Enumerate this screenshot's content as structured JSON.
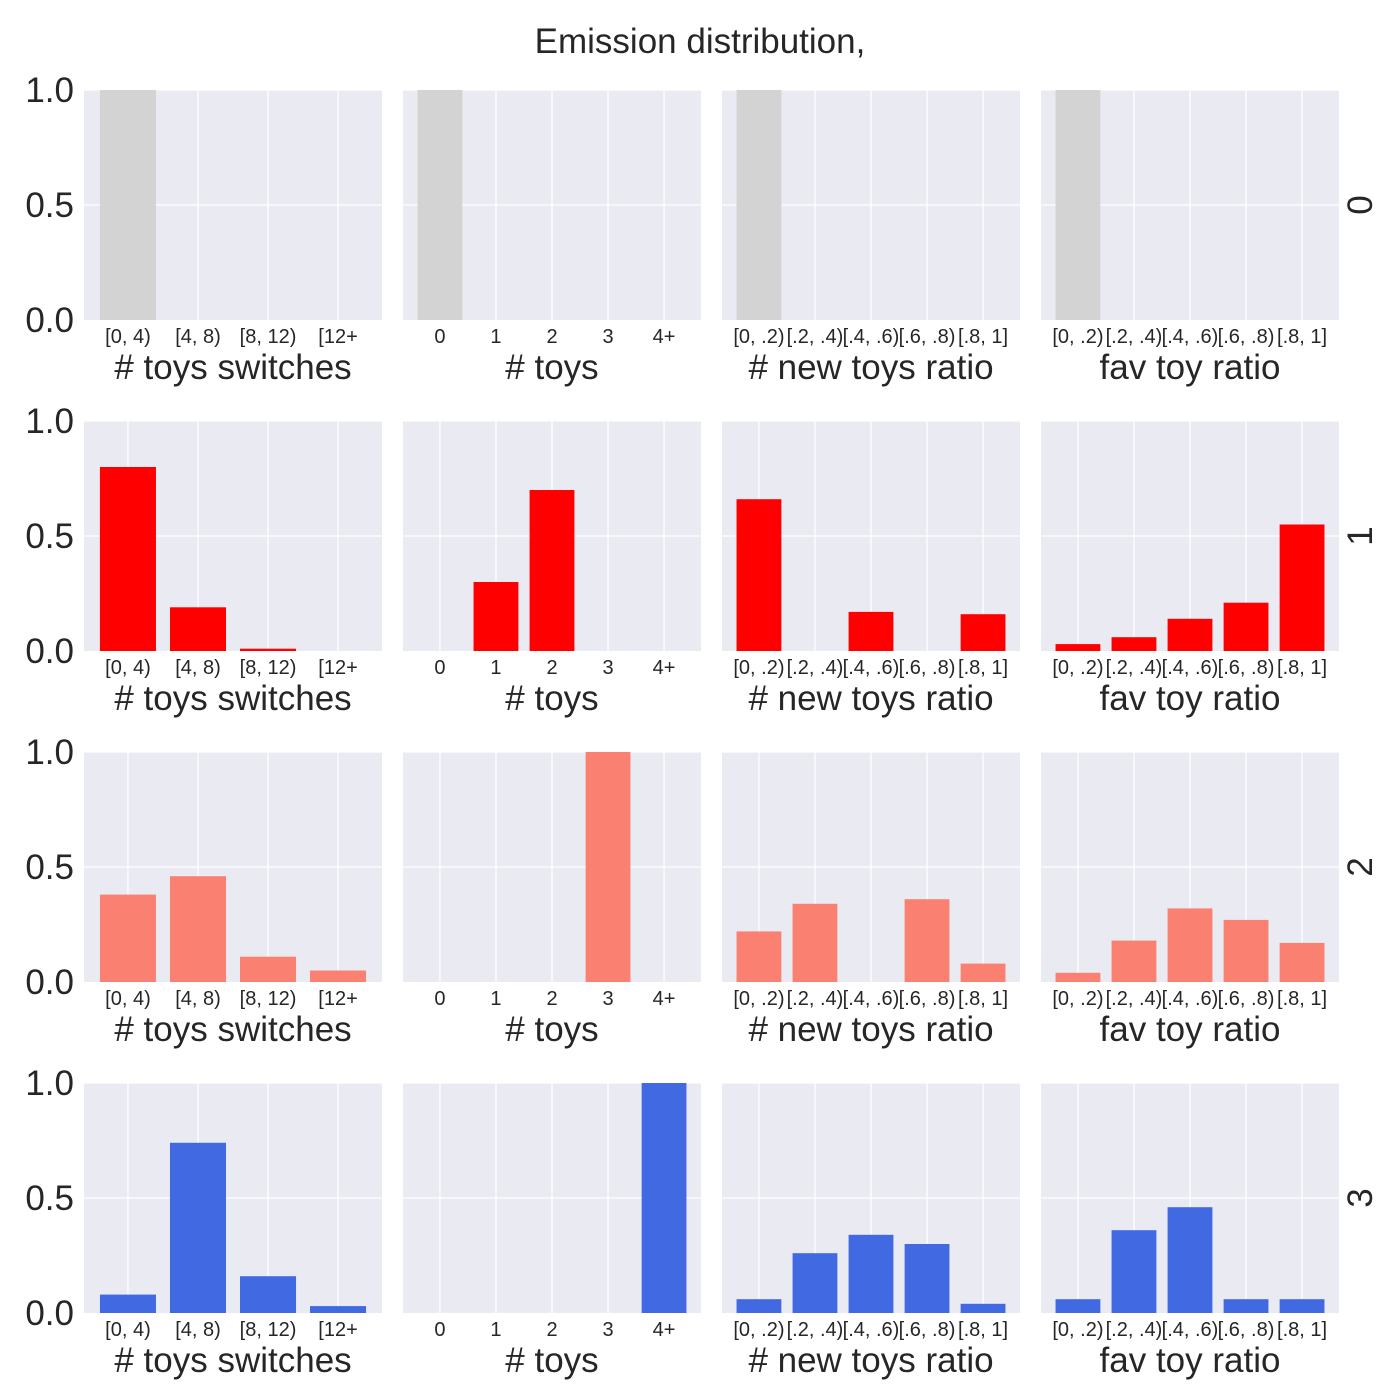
{
  "title": "Emission distribution,",
  "colors": {
    "background": "#eaeaf2",
    "grid": "#ffffff",
    "text": "#262626",
    "state_0": "#d3d3d3",
    "state_1": "#ff0000",
    "state_2": "#fa8072",
    "state_3": "#4169e1"
  },
  "chart_data": {
    "type": "bar",
    "layout": "grid 4 rows (states) x 4 columns (features)",
    "ylim": [
      0,
      1.0
    ],
    "yticks": [
      "0.0",
      "0.5",
      "1.0"
    ],
    "grid": true,
    "columns": [
      {
        "xlabel": "# toys switches",
        "categories": [
          "[0, 4)",
          "[4, 8)",
          "[8, 12)",
          "[12+"
        ]
      },
      {
        "xlabel": "# toys",
        "categories": [
          "0",
          "1",
          "2",
          "3",
          "4+"
        ]
      },
      {
        "xlabel": "# new toys ratio",
        "categories": [
          "[0, .2)",
          "[.2, .4)",
          "[.4, .6)",
          "[.6, .8)",
          "[.8, 1]"
        ]
      },
      {
        "xlabel": "fav toy ratio",
        "categories": [
          "[0, .2)",
          "[.2, .4)",
          "[.4, .6)",
          "[.6, .8)",
          "[.8, 1]"
        ]
      }
    ],
    "rows": [
      {
        "label": "0",
        "color": "#d3d3d3",
        "values": [
          [
            1.0,
            0,
            0,
            0
          ],
          [
            1.0,
            0,
            0,
            0,
            0
          ],
          [
            1.0,
            0,
            0,
            0,
            0
          ],
          [
            1.0,
            0,
            0,
            0,
            0
          ]
        ]
      },
      {
        "label": "1",
        "color": "#ff0000",
        "values": [
          [
            0.8,
            0.19,
            0.01,
            0
          ],
          [
            0,
            0.3,
            0.7,
            0,
            0
          ],
          [
            0.66,
            0,
            0.17,
            0,
            0.16
          ],
          [
            0.03,
            0.06,
            0.14,
            0.21,
            0.55
          ]
        ]
      },
      {
        "label": "2",
        "color": "#fa8072",
        "values": [
          [
            0.38,
            0.46,
            0.11,
            0.05
          ],
          [
            0,
            0,
            0,
            1.0,
            0
          ],
          [
            0.22,
            0.34,
            0,
            0.36,
            0.08
          ],
          [
            0.04,
            0.18,
            0.32,
            0.27,
            0.17
          ]
        ]
      },
      {
        "label": "3",
        "color": "#4169e1",
        "values": [
          [
            0.08,
            0.74,
            0.16,
            0.03
          ],
          [
            0,
            0,
            0,
            0,
            1.0
          ],
          [
            0.06,
            0.26,
            0.34,
            0.3,
            0.04
          ],
          [
            0.06,
            0.36,
            0.46,
            0.06,
            0.06
          ]
        ]
      }
    ]
  }
}
